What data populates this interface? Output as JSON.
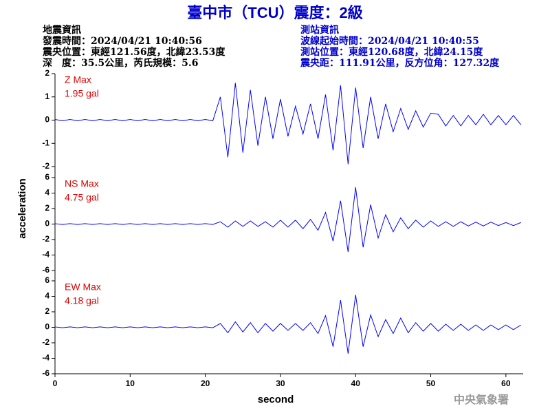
{
  "header": {
    "title": "臺中市（TCU）震度：2級",
    "left": [
      "地震資訊",
      "發震時間：2024/04/21 10:40:56",
      "震央位置：東經121.56度，北緯23.53度",
      "深　度：35.5公里，芮氏規模：5.6"
    ],
    "right": [
      "測站資訊",
      "波線起始時間：2024/04/21 10:40:55",
      "測站位置：東經120.68度，北緯24.15度",
      "震央距：111.91公里，反方位角：127.32度"
    ]
  },
  "axes": {
    "ylabel": "acceleration",
    "xlabel": "second"
  },
  "footer": "中央氣象署",
  "chart_data": [
    {
      "type": "line",
      "label": "Z Max",
      "max_text": "1.95 gal",
      "color": "#0000ff",
      "label_color": "#e00000",
      "xlim": [
        0,
        62.3
      ],
      "ylim": [
        -2,
        2
      ],
      "yticks": [
        -2,
        -1,
        0,
        1,
        2
      ],
      "x": [
        0,
        1,
        2,
        3,
        4,
        5,
        6,
        7,
        8,
        9,
        10,
        11,
        12,
        13,
        14,
        15,
        16,
        17,
        18,
        19,
        20,
        21,
        22,
        23,
        24,
        25,
        26,
        27,
        28,
        29,
        30,
        31,
        32,
        33,
        34,
        35,
        36,
        37,
        38,
        39,
        40,
        41,
        42,
        43,
        44,
        45,
        46,
        47,
        48,
        49,
        50,
        51,
        52,
        53,
        54,
        55,
        56,
        57,
        58,
        59,
        60,
        61,
        62
      ],
      "values": [
        0.03,
        -0.03,
        0.03,
        -0.03,
        0.03,
        -0.03,
        0.03,
        -0.03,
        0.03,
        -0.03,
        0.03,
        -0.03,
        0.03,
        -0.03,
        0.03,
        -0.03,
        0.03,
        -0.03,
        0.03,
        -0.03,
        0.03,
        -0.03,
        1.0,
        -1.6,
        1.6,
        -1.4,
        1.3,
        -1.1,
        1.0,
        -0.8,
        0.9,
        -0.7,
        0.6,
        -0.6,
        0.7,
        -0.8,
        1.1,
        -1.3,
        1.5,
        -1.9,
        1.4,
        -1.2,
        1.0,
        -0.8,
        0.7,
        -0.5,
        0.5,
        -0.4,
        0.4,
        -0.3,
        0.3,
        0.25,
        -0.25,
        0.2,
        -0.25,
        0.2,
        -0.2,
        0.25,
        -0.2,
        0.2,
        -0.2,
        0.2,
        -0.2
      ]
    },
    {
      "type": "line",
      "label": "NS Max",
      "max_text": "4.75 gal",
      "color": "#0000ff",
      "label_color": "#e00000",
      "xlim": [
        0,
        62.3
      ],
      "ylim": [
        -6,
        6
      ],
      "yticks": [
        -6,
        -4,
        -2,
        0,
        2,
        4,
        6
      ],
      "x": [
        0,
        1,
        2,
        3,
        4,
        5,
        6,
        7,
        8,
        9,
        10,
        11,
        12,
        13,
        14,
        15,
        16,
        17,
        18,
        19,
        20,
        21,
        22,
        23,
        24,
        25,
        26,
        27,
        28,
        29,
        30,
        31,
        32,
        33,
        34,
        35,
        36,
        37,
        38,
        39,
        40,
        41,
        42,
        43,
        44,
        45,
        46,
        47,
        48,
        49,
        50,
        51,
        52,
        53,
        54,
        55,
        56,
        57,
        58,
        59,
        60,
        61,
        62
      ],
      "values": [
        0.05,
        -0.05,
        0.05,
        -0.05,
        0.05,
        -0.05,
        0.05,
        -0.05,
        0.05,
        -0.05,
        0.05,
        -0.05,
        0.05,
        -0.05,
        0.05,
        -0.05,
        0.05,
        -0.05,
        0.05,
        -0.05,
        0.05,
        -0.05,
        0.3,
        -0.4,
        0.4,
        -0.3,
        0.4,
        -0.3,
        0.3,
        -0.4,
        0.5,
        -0.4,
        0.5,
        -0.6,
        0.6,
        -0.8,
        1.5,
        -2.2,
        3.0,
        -3.6,
        4.75,
        -3.0,
        2.5,
        -1.8,
        1.2,
        -1.0,
        0.8,
        -0.6,
        0.5,
        -0.4,
        0.4,
        -0.3,
        0.3,
        -0.3,
        0.3,
        -0.25,
        0.25,
        -0.25,
        0.25,
        -0.2,
        0.2,
        -0.2,
        0.2
      ]
    },
    {
      "type": "line",
      "label": "EW Max",
      "max_text": "4.18 gal",
      "color": "#0000ff",
      "label_color": "#e00000",
      "xlim": [
        0,
        62.3
      ],
      "ylim": [
        -6,
        6
      ],
      "yticks": [
        -6,
        -4,
        -2,
        0,
        2,
        4,
        6
      ],
      "xticks": [
        0,
        10,
        20,
        30,
        40,
        50,
        60
      ],
      "x": [
        0,
        1,
        2,
        3,
        4,
        5,
        6,
        7,
        8,
        9,
        10,
        11,
        12,
        13,
        14,
        15,
        16,
        17,
        18,
        19,
        20,
        21,
        22,
        23,
        24,
        25,
        26,
        27,
        28,
        29,
        30,
        31,
        32,
        33,
        34,
        35,
        36,
        37,
        38,
        39,
        40,
        41,
        42,
        43,
        44,
        45,
        46,
        47,
        48,
        49,
        50,
        51,
        52,
        53,
        54,
        55,
        56,
        57,
        58,
        59,
        60,
        61,
        62
      ],
      "values": [
        0.05,
        -0.05,
        0.05,
        -0.05,
        0.05,
        -0.05,
        0.05,
        -0.05,
        0.05,
        -0.05,
        0.05,
        -0.05,
        0.05,
        -0.05,
        0.05,
        -0.05,
        0.05,
        -0.05,
        0.05,
        -0.05,
        0.05,
        -0.05,
        0.5,
        -0.7,
        0.7,
        -0.6,
        0.6,
        -0.7,
        0.5,
        -0.5,
        0.5,
        -0.4,
        0.5,
        -0.4,
        0.6,
        -0.8,
        1.5,
        -2.5,
        3.5,
        -3.4,
        4.18,
        -2.5,
        1.6,
        -1.2,
        1.0,
        -0.8,
        1.2,
        -0.7,
        0.6,
        -0.5,
        0.5,
        -0.5,
        0.4,
        -0.4,
        0.4,
        -0.4,
        0.3,
        -0.4,
        0.3,
        -0.3,
        0.3,
        -0.3,
        0.3
      ]
    }
  ]
}
